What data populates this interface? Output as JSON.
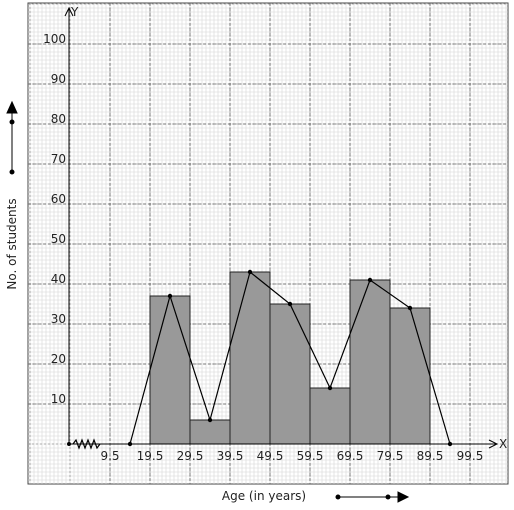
{
  "chart_data": {
    "type": "histogram",
    "bins": [
      19.5,
      29.5,
      39.5,
      49.5,
      59.5,
      69.5,
      79.5,
      89.5
    ],
    "values": [
      37,
      6,
      43,
      35,
      14,
      41,
      34
    ],
    "color": "#999999",
    "polygon": {
      "x": [
        14.5,
        24.5,
        34.5,
        44.5,
        54.5,
        64.5,
        74.5,
        84.5,
        94.5
      ],
      "values": [
        0,
        37,
        6,
        43,
        35,
        14,
        41,
        34,
        0
      ]
    },
    "xlabel": "Age (in years)",
    "ylabel": "No. of students",
    "x_axis_name": "X",
    "y_axis_name": "Y",
    "xlim": [
      -0.75,
      106.25
    ],
    "ylim": [
      0,
      109
    ],
    "xticks": [
      9.5,
      19.5,
      29.5,
      39.5,
      49.5,
      59.5,
      69.5,
      79.5,
      89.5,
      99.5
    ],
    "yticks": [
      10,
      20,
      30,
      40,
      50,
      60,
      70,
      80,
      90,
      100
    ],
    "grid": true
  }
}
